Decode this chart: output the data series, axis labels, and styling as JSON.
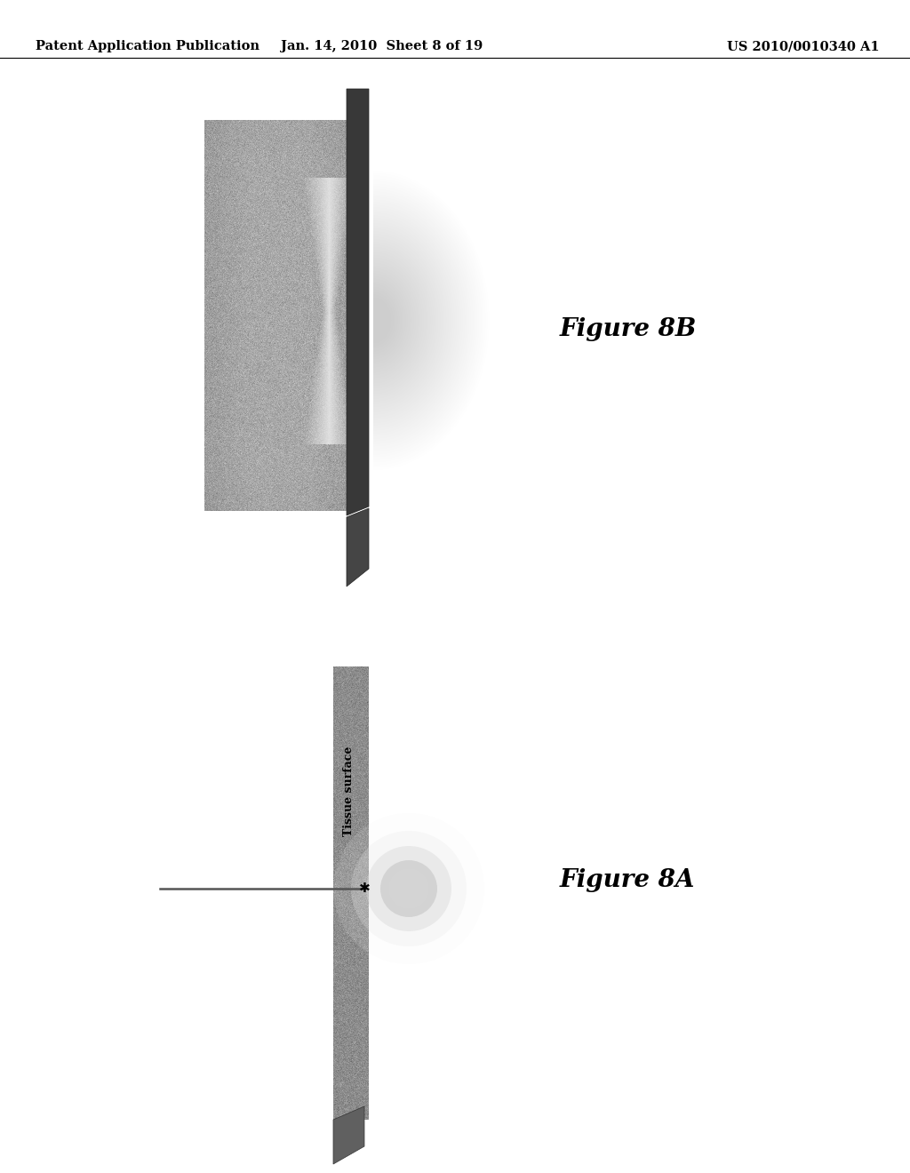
{
  "bg_color": "#ffffff",
  "header_left": "Patent Application Publication",
  "header_center": "Jan. 14, 2010  Sheet 8 of 19",
  "header_right": "US 2010/0010340 A1",
  "header_fontsize": 10.5,
  "fig8b_label": "Figure 8B",
  "fig8b_label_fontsize": 20,
  "fig8a_label": "Figure 8A",
  "fig8a_label_fontsize": 20,
  "tissue_surface_label": "Tissue surface",
  "tissue_surface_fontsize": 9
}
